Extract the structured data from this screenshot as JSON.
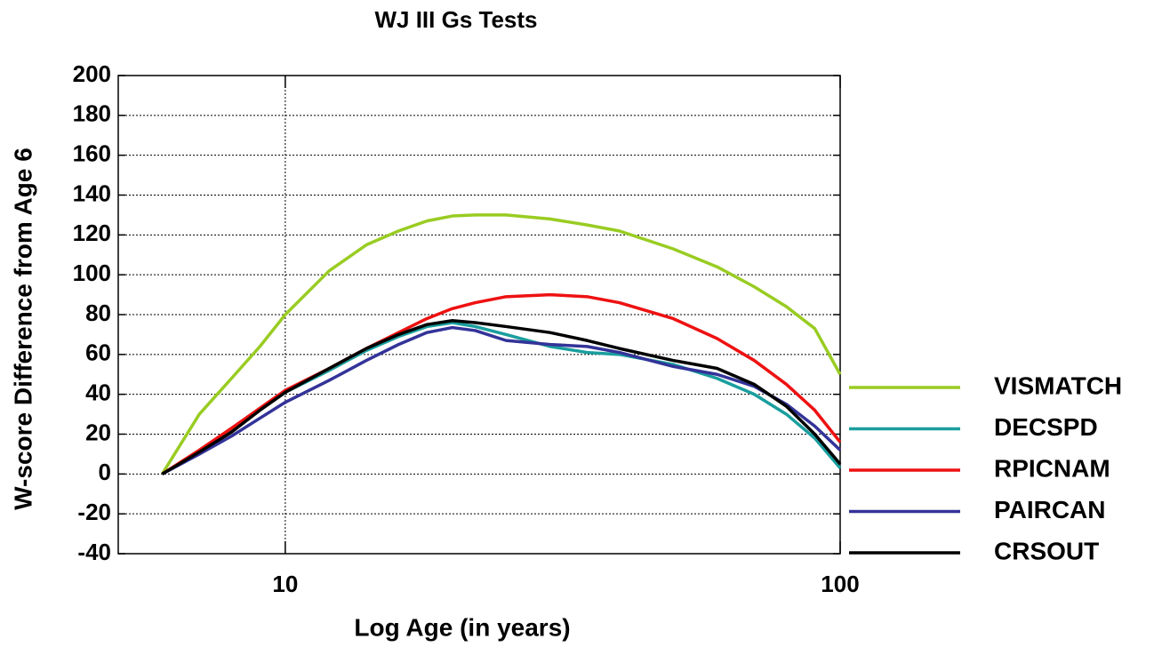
{
  "chart_data": {
    "type": "line",
    "title": "WJ III Gs Tests",
    "xlabel": "Log Age (in years)",
    "ylabel": "W-score Difference from Age 6",
    "xscale": "log",
    "grid": true,
    "legend": "right",
    "xlim": [
      5,
      100
    ],
    "xticks": [
      10,
      100
    ],
    "ylim": [
      -40,
      200
    ],
    "yticks": [
      -40,
      -20,
      0,
      20,
      40,
      60,
      80,
      100,
      120,
      140,
      160,
      180,
      200
    ],
    "x": [
      6,
      7,
      8,
      9,
      10,
      12,
      14,
      16,
      18,
      20,
      22,
      25,
      30,
      35,
      40,
      50,
      60,
      70,
      80,
      90,
      100
    ],
    "series": [
      {
        "name": "VISMATCH",
        "color": "#99cc22",
        "values": [
          0,
          30,
          48,
          64,
          80,
          102,
          115,
          122,
          127,
          129.5,
          130,
          130,
          128,
          125,
          122,
          113,
          104,
          94,
          84,
          73,
          50
        ]
      },
      {
        "name": "DECSPD",
        "color": "#1a9e9e",
        "values": [
          0,
          11,
          22,
          32,
          41,
          52,
          62,
          69,
          74,
          76,
          74,
          70,
          64,
          61,
          60,
          55,
          48,
          40,
          30,
          18,
          3
        ]
      },
      {
        "name": "RPICNAM",
        "color": "#ee1111",
        "values": [
          0,
          12,
          23,
          33,
          42,
          53,
          63,
          71,
          78,
          83,
          86,
          89,
          90,
          89,
          86,
          78,
          68,
          57,
          45,
          32,
          16
        ]
      },
      {
        "name": "PAIRCAN",
        "color": "#333399",
        "values": [
          0,
          10,
          19,
          28,
          36,
          47,
          57,
          65,
          71,
          73.5,
          72,
          67,
          65,
          64,
          61,
          54,
          50,
          44,
          35,
          24,
          12
        ]
      },
      {
        "name": "CRSOUT",
        "color": "#000000",
        "values": [
          0,
          11,
          21,
          32,
          41,
          53,
          63,
          70,
          75,
          77,
          76,
          74,
          71,
          67,
          63,
          57,
          53,
          45,
          34,
          20,
          5
        ]
      }
    ]
  }
}
